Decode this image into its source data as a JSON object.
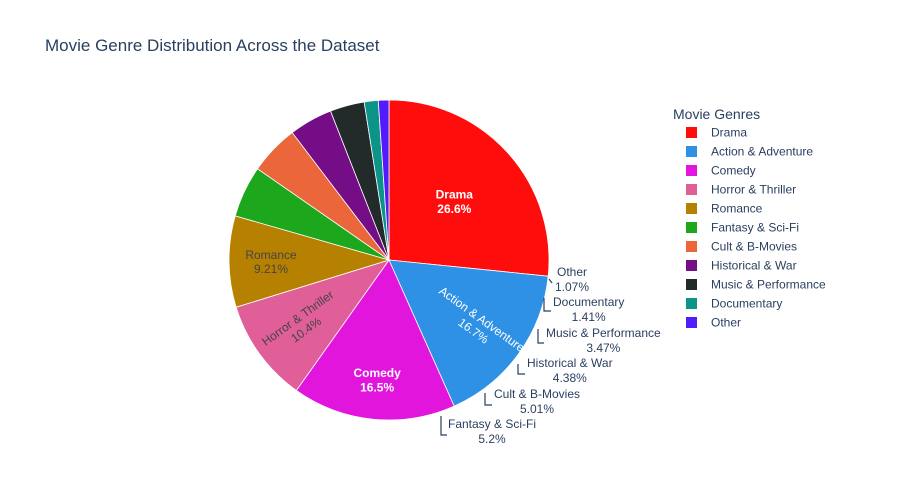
{
  "chart_data": {
    "type": "pie",
    "title": "Movie Genre Distribution Across the Dataset",
    "legend_title": "Movie Genres",
    "legend_position": "right",
    "slices": [
      {
        "label": "Drama",
        "percent": 26.6,
        "percent_text": "26.6%",
        "color": "#FF0D0D"
      },
      {
        "label": "Action & Adventure",
        "percent": 16.7,
        "percent_text": "16.7%",
        "color": "#2E91E5"
      },
      {
        "label": "Comedy",
        "percent": 16.5,
        "percent_text": "16.5%",
        "color": "#E115DC"
      },
      {
        "label": "Horror & Thriller",
        "percent": 10.4,
        "percent_text": "10.4%",
        "color": "#E15F99"
      },
      {
        "label": "Romance",
        "percent": 9.21,
        "percent_text": "9.21%",
        "color": "#B68100"
      },
      {
        "label": "Fantasy & Sci-Fi",
        "percent": 5.2,
        "percent_text": "5.2%",
        "color": "#1CA71C"
      },
      {
        "label": "Cult & B-Movies",
        "percent": 5.01,
        "percent_text": "5.01%",
        "color": "#EB663B"
      },
      {
        "label": "Historical & War",
        "percent": 4.38,
        "percent_text": "4.38%",
        "color": "#750D86"
      },
      {
        "label": "Music & Performance",
        "percent": 3.47,
        "percent_text": "3.47%",
        "color": "#222A2A"
      },
      {
        "label": "Documentary",
        "percent": 1.41,
        "percent_text": "1.41%",
        "color": "#0D9488"
      },
      {
        "label": "Other",
        "percent": 1.07,
        "percent_text": "1.07%",
        "color": "#511CFB"
      }
    ]
  }
}
